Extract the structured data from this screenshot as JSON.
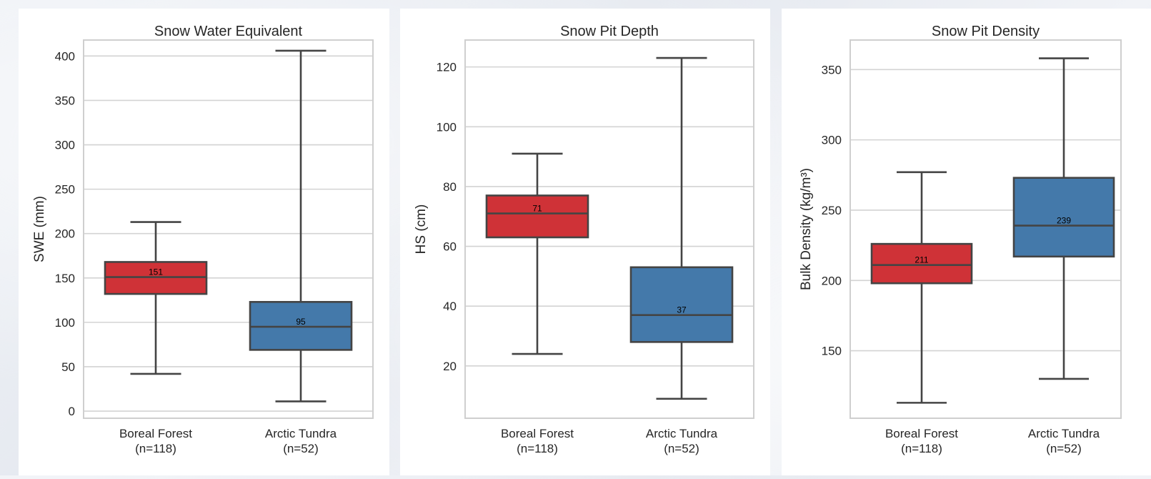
{
  "colors": {
    "forest": "#cf3237",
    "tundra": "#4479aa",
    "line": "#444444",
    "grid": "#d3d3d3",
    "frame": "#cfcfcf"
  },
  "chart_data": [
    {
      "type": "box",
      "title": "Snow Water Equivalent",
      "xlabel": "",
      "ylabel": "SWE (mm)",
      "ylim": [
        -8,
        418
      ],
      "yticks": [
        0,
        50,
        100,
        150,
        200,
        250,
        300,
        350,
        400
      ],
      "grid": true,
      "categories": [
        "Boreal Forest\n(n=118)",
        "Arctic Tundra\n(n=52)"
      ],
      "series": [
        {
          "color": "forest",
          "whisker_low": 42,
          "q1": 132,
          "median": 151,
          "q3": 168,
          "whisker_high": 213,
          "median_label": "151"
        },
        {
          "color": "tundra",
          "whisker_low": 11,
          "q1": 69,
          "median": 95,
          "q3": 123,
          "whisker_high": 406,
          "median_label": "95"
        }
      ]
    },
    {
      "type": "box",
      "title": "Snow Pit Depth",
      "xlabel": "",
      "ylabel": "HS (cm)",
      "ylim": [
        2.5,
        129
      ],
      "yticks": [
        20,
        40,
        60,
        80,
        100,
        120
      ],
      "grid": true,
      "categories": [
        "Boreal Forest\n(n=118)",
        "Arctic Tundra\n(n=52)"
      ],
      "series": [
        {
          "color": "forest",
          "whisker_low": 24,
          "q1": 63,
          "median": 71,
          "q3": 77,
          "whisker_high": 91,
          "median_label": "71"
        },
        {
          "color": "tundra",
          "whisker_low": 9,
          "q1": 28,
          "median": 37,
          "q3": 53,
          "whisker_high": 123,
          "median_label": "37"
        }
      ]
    },
    {
      "type": "box",
      "title": "Snow Pit Density",
      "xlabel": "",
      "ylabel": "Bulk Density (kg/m³)",
      "ylim": [
        102,
        371
      ],
      "yticks": [
        150,
        200,
        250,
        300,
        350
      ],
      "grid": true,
      "categories": [
        "Boreal Forest\n(n=118)",
        "Arctic Tundra\n(n=52)"
      ],
      "series": [
        {
          "color": "forest",
          "whisker_low": 113,
          "q1": 198,
          "median": 211,
          "q3": 226,
          "whisker_high": 277,
          "median_label": "211"
        },
        {
          "color": "tundra",
          "whisker_low": 130,
          "q1": 217,
          "median": 239,
          "q3": 273,
          "whisker_high": 358,
          "median_label": "239"
        }
      ]
    }
  ]
}
